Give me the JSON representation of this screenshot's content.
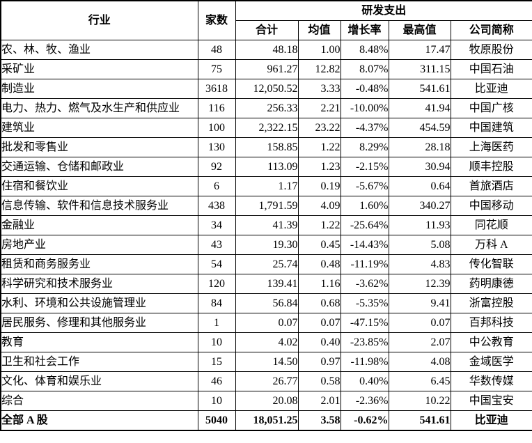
{
  "page": {
    "background_color": "#ffffff",
    "border_color": "#000000"
  },
  "table": {
    "header": {
      "industry": "行业",
      "count": "家数",
      "rd_group": "研发支出",
      "subcols": [
        {
          "key": "total",
          "label": "合计"
        },
        {
          "key": "mean",
          "label": "均值"
        },
        {
          "key": "growth",
          "label": "增长率"
        },
        {
          "key": "max",
          "label": "最高值"
        },
        {
          "key": "company",
          "label": "公司简称"
        }
      ]
    },
    "rows": [
      {
        "industry": "农、林、牧、渔业",
        "count": "48",
        "total": "48.18",
        "mean": "1.00",
        "growth": "8.48%",
        "max": "17.47",
        "company": "牧原股份"
      },
      {
        "industry": "采矿业",
        "count": "75",
        "total": "961.27",
        "mean": "12.82",
        "growth": "8.07%",
        "max": "311.15",
        "company": "中国石油"
      },
      {
        "industry": "制造业",
        "count": "3618",
        "total": "12,050.52",
        "mean": "3.33",
        "growth": "-0.48%",
        "max": "541.61",
        "company": "比亚迪"
      },
      {
        "industry": "电力、热力、燃气及水生产和供应业",
        "count": "116",
        "total": "256.33",
        "mean": "2.21",
        "growth": "-10.00%",
        "max": "41.94",
        "company": "中国广核"
      },
      {
        "industry": "建筑业",
        "count": "100",
        "total": "2,322.15",
        "mean": "23.22",
        "growth": "-4.37%",
        "max": "454.59",
        "company": "中国建筑"
      },
      {
        "industry": "批发和零售业",
        "count": "130",
        "total": "158.85",
        "mean": "1.22",
        "growth": "8.29%",
        "max": "28.18",
        "company": "上海医药"
      },
      {
        "industry": "交通运输、仓储和邮政业",
        "count": "92",
        "total": "113.09",
        "mean": "1.23",
        "growth": "-2.15%",
        "max": "30.94",
        "company": "顺丰控股"
      },
      {
        "industry": "住宿和餐饮业",
        "count": "6",
        "total": "1.17",
        "mean": "0.19",
        "growth": "-5.67%",
        "max": "0.64",
        "company": "首旅酒店"
      },
      {
        "industry": "信息传输、软件和信息技术服务业",
        "count": "438",
        "total": "1,791.59",
        "mean": "4.09",
        "growth": "1.60%",
        "max": "340.27",
        "company": "中国移动"
      },
      {
        "industry": "金融业",
        "count": "34",
        "total": "41.39",
        "mean": "1.22",
        "growth": "-25.64%",
        "max": "11.93",
        "company": "同花顺"
      },
      {
        "industry": "房地产业",
        "count": "43",
        "total": "19.30",
        "mean": "0.45",
        "growth": "-14.43%",
        "max": "5.08",
        "company": "万科 A"
      },
      {
        "industry": "租赁和商务服务业",
        "count": "54",
        "total": "25.74",
        "mean": "0.48",
        "growth": "-11.19%",
        "max": "4.83",
        "company": "传化智联"
      },
      {
        "industry": "科学研究和技术服务业",
        "count": "120",
        "total": "139.41",
        "mean": "1.16",
        "growth": "-3.62%",
        "max": "12.39",
        "company": "药明康德"
      },
      {
        "industry": "水利、环境和公共设施管理业",
        "count": "84",
        "total": "56.84",
        "mean": "0.68",
        "growth": "-5.35%",
        "max": "9.41",
        "company": "浙富控股"
      },
      {
        "industry": "居民服务、修理和其他服务业",
        "count": "1",
        "total": "0.07",
        "mean": "0.07",
        "growth": "-47.15%",
        "max": "0.07",
        "company": "百邦科技"
      },
      {
        "industry": "教育",
        "count": "10",
        "total": "4.02",
        "mean": "0.40",
        "growth": "-23.85%",
        "max": "2.07",
        "company": "中公教育"
      },
      {
        "industry": "卫生和社会工作",
        "count": "15",
        "total": "14.50",
        "mean": "0.97",
        "growth": "-11.98%",
        "max": "4.08",
        "company": "金域医学"
      },
      {
        "industry": "文化、体育和娱乐业",
        "count": "46",
        "total": "26.77",
        "mean": "0.58",
        "growth": "0.40%",
        "max": "6.45",
        "company": "华数传媒"
      },
      {
        "industry": "综合",
        "count": "10",
        "total": "20.08",
        "mean": "2.01",
        "growth": "-2.36%",
        "max": "10.22",
        "company": "中国宝安"
      }
    ],
    "total_row": {
      "industry": "全部 A 股",
      "count": "5040",
      "total": "18,051.25",
      "mean": "3.58",
      "growth": "-0.62%",
      "max": "541.61",
      "company": "比亚迪"
    }
  }
}
